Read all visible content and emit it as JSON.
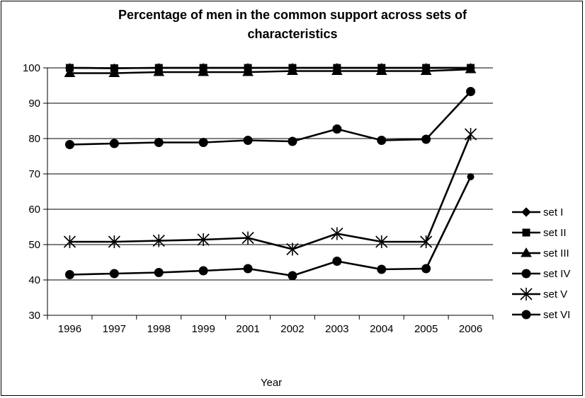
{
  "chart_data": {
    "type": "line",
    "title_lines": [
      "Percentage of men in the common support across sets of",
      "characteristics"
    ],
    "xlabel": "Year",
    "ylabel": "",
    "categories": [
      "1996",
      "1997",
      "1998",
      "1999",
      "2001",
      "2002",
      "2003",
      "2004",
      "2005",
      "2006"
    ],
    "ylim": [
      30,
      100
    ],
    "yticks": [
      30,
      40,
      50,
      60,
      70,
      80,
      90,
      100
    ],
    "grid": "horizontal",
    "legend": "right",
    "line_color": "#000000",
    "series": [
      {
        "name": "set I",
        "marker": "diamond",
        "values": [
          100,
          99.9,
          100,
          100,
          100,
          100,
          100,
          100,
          100,
          100
        ]
      },
      {
        "name": "set II",
        "marker": "square",
        "values": [
          100,
          99.9,
          100,
          100,
          100,
          100,
          100,
          100,
          100,
          100
        ]
      },
      {
        "name": "set III",
        "marker": "triangle",
        "values": [
          98.5,
          98.5,
          98.8,
          98.8,
          98.8,
          99.1,
          99.1,
          99.1,
          99.1,
          99.6
        ]
      },
      {
        "name": "set IV",
        "marker": "circle",
        "values": [
          78.3,
          78.6,
          78.9,
          78.9,
          79.5,
          79.2,
          82.7,
          79.5,
          79.8,
          93.3
        ]
      },
      {
        "name": "set V",
        "marker": "star",
        "values": [
          50.8,
          50.8,
          51.1,
          51.4,
          51.9,
          48.7,
          53.1,
          50.8,
          50.8,
          81.2
        ]
      },
      {
        "name": "set VI",
        "marker": "circle",
        "values": [
          41.5,
          41.8,
          42.1,
          42.6,
          43.2,
          41.2,
          45.3,
          43.0,
          43.2,
          69.2
        ]
      }
    ]
  }
}
